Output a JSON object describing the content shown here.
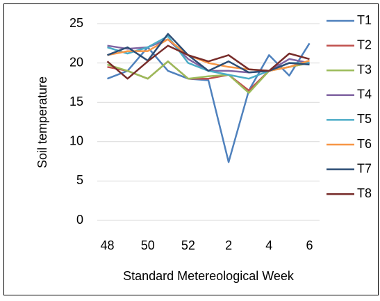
{
  "chart_data": {
    "type": "line",
    "xlabel": "Standard Metereological Week",
    "ylabel": "Soil temperature",
    "categories": [
      "48",
      null,
      "50",
      null,
      "52",
      null,
      "2",
      null,
      "4",
      null,
      "6"
    ],
    "ylim": [
      0,
      25
    ],
    "yticks": [
      0,
      5,
      10,
      15,
      20,
      25
    ],
    "grid": true,
    "legend": "right",
    "series": [
      {
        "name": "T1",
        "color": "#4f81bd",
        "values": [
          18,
          19,
          22,
          19,
          18,
          17.8,
          7.4,
          16.5,
          21,
          18.4,
          22.5
        ]
      },
      {
        "name": "T2",
        "color": "#c0504d",
        "values": [
          19.5,
          19,
          18,
          20.2,
          18,
          18,
          18.5,
          16.5,
          19,
          19.5,
          20
        ]
      },
      {
        "name": "T3",
        "color": "#9bbb59",
        "values": [
          19.8,
          19,
          18,
          20.2,
          18,
          18.3,
          18.5,
          16.2,
          19,
          19.5,
          20
        ]
      },
      {
        "name": "T4",
        "color": "#8064a2",
        "values": [
          22.2,
          21.8,
          22,
          23,
          20.5,
          19,
          19,
          18.8,
          19,
          20.5,
          20
        ]
      },
      {
        "name": "T5",
        "color": "#4bacc6",
        "values": [
          22,
          21.2,
          22,
          23.4,
          20,
          19,
          18.5,
          18,
          19,
          20,
          20
        ]
      },
      {
        "name": "T6",
        "color": "#f79646",
        "values": [
          21,
          21.5,
          21.5,
          23,
          21,
          20,
          19.5,
          19.2,
          19,
          19.5,
          20.3
        ]
      },
      {
        "name": "T7",
        "color": "#2c4d75",
        "values": [
          21,
          22,
          20.3,
          23.7,
          21,
          19,
          20.2,
          18.8,
          19,
          20,
          19.8
        ]
      },
      {
        "name": "T8",
        "color": "#772c2a",
        "values": [
          20.2,
          18,
          20.2,
          22.2,
          21,
          20.2,
          21,
          19.2,
          19,
          21.2,
          20.5
        ]
      }
    ]
  }
}
